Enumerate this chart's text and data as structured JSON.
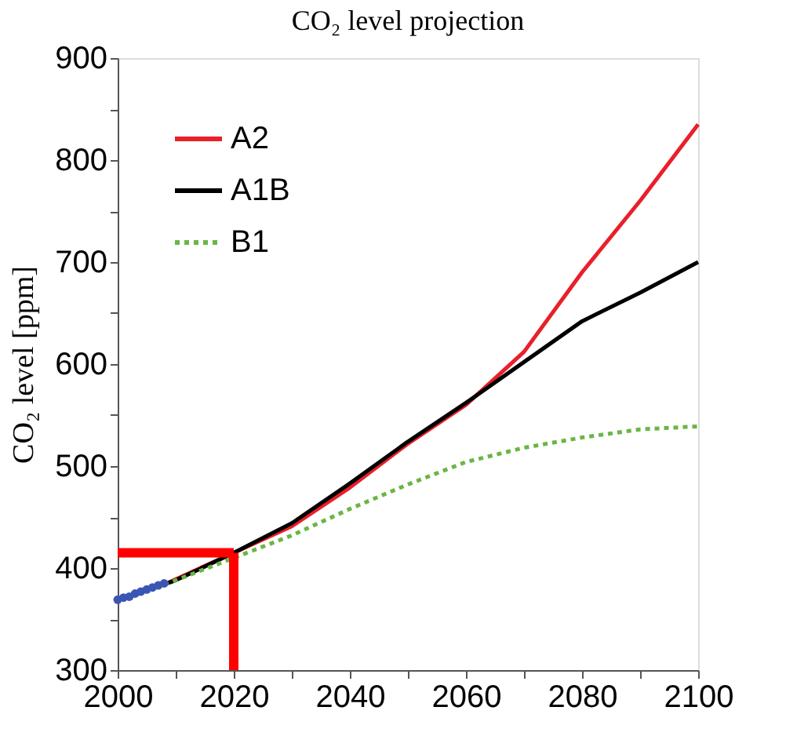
{
  "chart_data": {
    "type": "line",
    "title": "CO₂ level projection",
    "ylabel": "CO₂ level [ppm]",
    "xlim": [
      2000,
      2100
    ],
    "ylim": [
      300,
      900
    ],
    "xticks": [
      2000,
      {
        "value": 2010,
        "label": null
      },
      2020,
      {
        "value": 2030,
        "label": null
      },
      2040,
      {
        "value": 2050,
        "label": null
      },
      2060,
      {
        "value": 2070,
        "label": null
      },
      2080,
      {
        "value": 2090,
        "label": null
      },
      2100
    ],
    "yticks": [
      300,
      {
        "value": 350,
        "label": null
      },
      400,
      {
        "value": 450,
        "label": null
      },
      500,
      {
        "value": 550,
        "label": null
      },
      600,
      {
        "value": 650,
        "label": null
      },
      700,
      {
        "value": 750,
        "label": null
      },
      800,
      {
        "value": 850,
        "label": null
      },
      900
    ],
    "grid": false,
    "legend": "top left",
    "series": [
      {
        "name": "A2",
        "color": "#e8202a",
        "line_style": "solid",
        "x": [
          2008,
          2010,
          2020,
          2030,
          2040,
          2050,
          2060,
          2070,
          2080,
          2090,
          2100
        ],
        "values": [
          384,
          389,
          415,
          441,
          479,
          522,
          560,
          612,
          690,
          760,
          835
        ]
      },
      {
        "name": "A1B",
        "color": "#000000",
        "line_style": "solid",
        "x": [
          2008,
          2010,
          2020,
          2030,
          2040,
          2050,
          2060,
          2070,
          2080,
          2090,
          2100
        ],
        "values": [
          384,
          388,
          415,
          444,
          483,
          524,
          562,
          602,
          642,
          670,
          700
        ]
      },
      {
        "name": "B1",
        "color": "#6ab645",
        "line_style": "dotted",
        "x": [
          2008,
          2010,
          2020,
          2030,
          2040,
          2050,
          2060,
          2070,
          2080,
          2090,
          2100
        ],
        "values": [
          384,
          388,
          410,
          432,
          458,
          482,
          504,
          518,
          528,
          536,
          539
        ]
      },
      {
        "type": "scatter",
        "color": "#3a55b4",
        "marker": "circle",
        "x": [
          2000,
          2001,
          2002,
          2003,
          2004,
          2005,
          2006,
          2007,
          2008
        ],
        "values": [
          369,
          371,
          372,
          375,
          377,
          379,
          381,
          383,
          385
        ]
      }
    ],
    "ref_lines": [
      {
        "axis": "y",
        "value": 415,
        "color": "#ff0000"
      },
      {
        "axis": "x",
        "value": 2020,
        "color": "#ff0000"
      }
    ]
  }
}
